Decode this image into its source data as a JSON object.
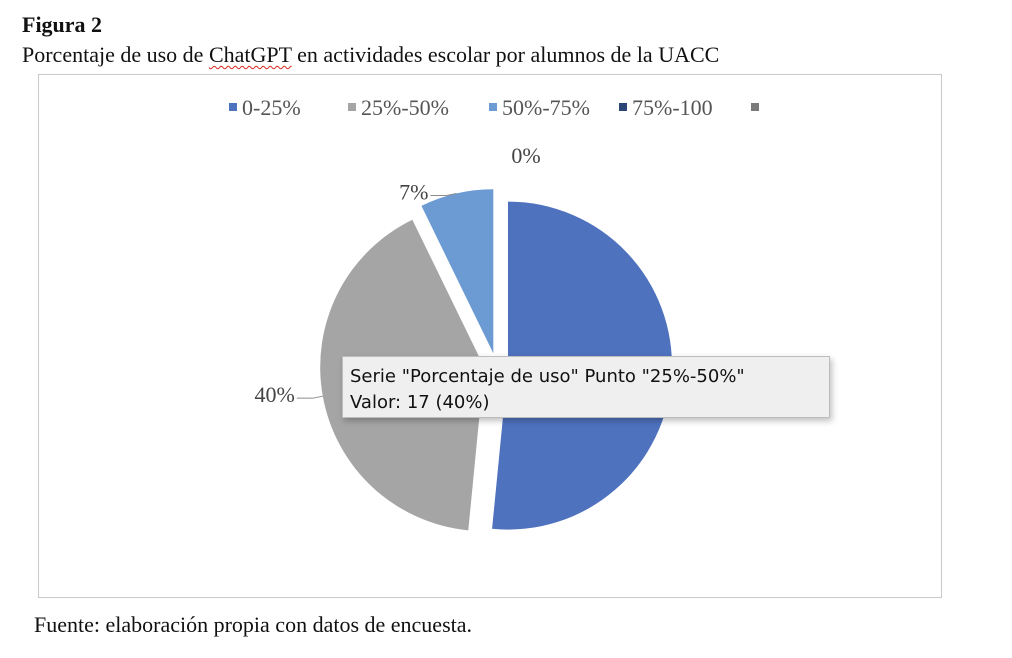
{
  "figure": {
    "label": "Figura 2",
    "title_before": "Porcentaje de uso de ",
    "title_misspelled": "ChatGPT",
    "title_after": " en actividades escolar por alumnos de la UACC",
    "source": "Fuente: elaboración propia con datos de encuesta."
  },
  "chart_data": {
    "type": "pie",
    "series_name": "Porcentaje de uso",
    "legend_position": "top",
    "categories": [
      "0-25%",
      "25%-50%",
      "50%-75%",
      "75%-100",
      ""
    ],
    "values": [
      50,
      40,
      7,
      0,
      0
    ],
    "data_labels": [
      "",
      "40%",
      "7%",
      "0%",
      ""
    ],
    "colors": [
      "#4f72be",
      "#a5a5a5",
      "#6b9bd2",
      "#2c4577",
      "#7a7a7a"
    ],
    "exploded": true
  },
  "tooltip": {
    "line1": "Serie \"Porcentaje de uso\" Punto \"25%-50%\"",
    "line2": "Valor: 17 (40%)"
  }
}
